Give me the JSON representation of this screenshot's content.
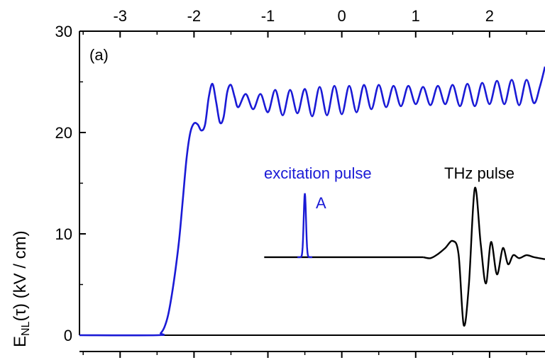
{
  "chart_data": {
    "type": "line",
    "panel_label": "(a)",
    "ylabel": {
      "prefix": "E",
      "subscript": "NL",
      "suffix": "(τ)  (kV / cm)"
    },
    "xlim": [
      -3.55,
      2.75
    ],
    "ylim": [
      0,
      30
    ],
    "x_ticks": [
      -3,
      -2,
      -1,
      0,
      1,
      2
    ],
    "x_tick_labels": [
      "-3",
      "-2",
      "-1",
      "0",
      "1",
      "2"
    ],
    "y_ticks": [
      0,
      10,
      20,
      30
    ],
    "y_tick_labels": [
      "0",
      "10",
      "20",
      "30"
    ],
    "grid": false,
    "series": [
      {
        "color": "#1a1ad6",
        "x": [
          -3.55,
          -2.5,
          -2.45,
          -2.4,
          -2.35,
          -2.3,
          -2.25,
          -2.2,
          -2.15,
          -2.1,
          -2.05,
          -2.0,
          -1.95,
          -1.9,
          -1.85,
          -1.8,
          -1.75,
          -1.7,
          -1.65,
          -1.6,
          -1.55,
          -1.5,
          -1.45,
          -1.4,
          -1.3,
          -1.2,
          -1.1,
          -1.0,
          -0.9,
          -0.8,
          -0.7,
          -0.6,
          -0.5,
          -0.4,
          -0.3,
          -0.2,
          -0.1,
          0.0,
          0.1,
          0.2,
          0.3,
          0.4,
          0.5,
          0.6,
          0.7,
          0.8,
          0.9,
          1.0,
          1.1,
          1.2,
          1.3,
          1.4,
          1.5,
          1.6,
          1.7,
          1.8,
          1.9,
          2.0,
          2.1,
          2.2,
          2.3,
          2.4,
          2.5,
          2.6,
          2.68,
          2.75
        ],
        "y": [
          0,
          0,
          0.2,
          0.8,
          2.0,
          4.0,
          6.5,
          9.5,
          13.5,
          17.5,
          20.0,
          20.9,
          20.8,
          20.2,
          20.8,
          23.5,
          24.8,
          23.0,
          21.0,
          21.5,
          24.0,
          24.7,
          23.5,
          22.5,
          23.8,
          22.3,
          23.8,
          22.0,
          24.2,
          21.7,
          24.2,
          21.9,
          24.3,
          21.6,
          24.5,
          21.7,
          24.6,
          21.8,
          24.6,
          22.0,
          24.7,
          22.3,
          24.7,
          22.5,
          24.6,
          22.6,
          24.6,
          22.8,
          24.5,
          22.7,
          24.6,
          22.8,
          24.7,
          22.6,
          24.8,
          22.6,
          24.9,
          22.8,
          25.1,
          22.8,
          25.2,
          22.7,
          25.2,
          22.9,
          24.5,
          26.5
        ]
      }
    ],
    "inset": {
      "excitation_label": "excitation pulse",
      "excitation_color": "#1a1ad6",
      "peak_label": "A",
      "thz_label": "THz pulse",
      "thz_color": "#000000",
      "baseline": 7.7,
      "excitation_peak_x": -0.5,
      "excitation_peak_y": 14.0,
      "thz_x": [
        1.1,
        1.2,
        1.3,
        1.4,
        1.5,
        1.58,
        1.65,
        1.72,
        1.8,
        1.88,
        1.95,
        2.02,
        2.1,
        2.18,
        2.25,
        2.32,
        2.4,
        2.5,
        2.6,
        2.75
      ],
      "thz_y": [
        7.7,
        7.6,
        8.0,
        8.6,
        9.3,
        8.0,
        1.0,
        5.0,
        14.5,
        9.0,
        5.1,
        9.2,
        6.0,
        8.6,
        7.0,
        7.9,
        7.6,
        7.9,
        7.7,
        7.5
      ]
    }
  }
}
